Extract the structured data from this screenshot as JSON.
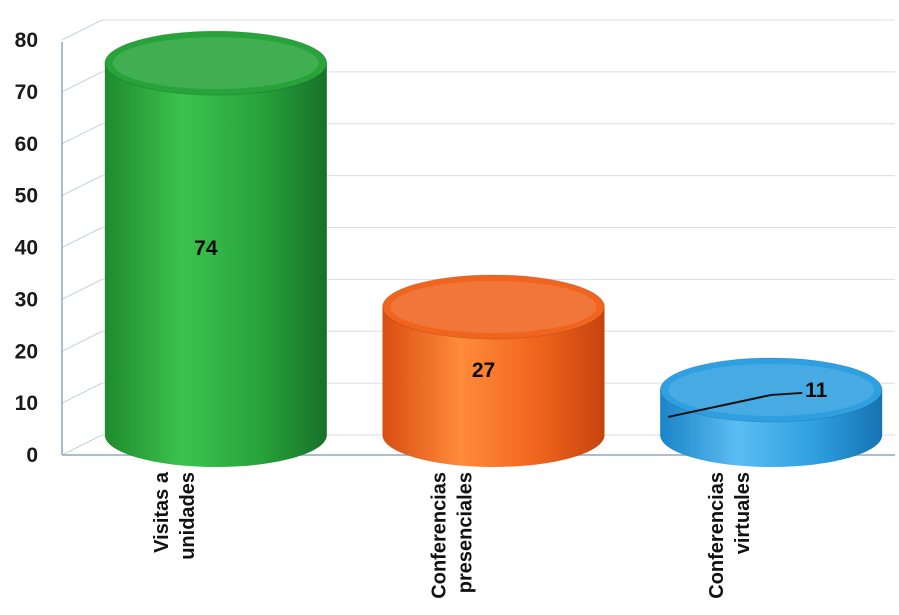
{
  "chart_data": {
    "type": "bar",
    "style": "3d-cylinder",
    "title": "",
    "xlabel": "",
    "ylabel": "",
    "categories": [
      [
        "Visitas a",
        "unidades"
      ],
      [
        "Conferencias",
        "presenciales"
      ],
      [
        "Conferencias",
        "virtuales"
      ]
    ],
    "values": [
      74,
      27,
      11
    ],
    "value_labels": [
      "74",
      "27",
      "11"
    ],
    "ylim": [
      0,
      80
    ],
    "yticks": [
      0,
      10,
      20,
      30,
      40,
      50,
      60,
      70,
      80
    ],
    "grid": true,
    "legend": "none",
    "colors": [
      "#27a33a",
      "#f0641e",
      "#2e9fe0"
    ]
  }
}
